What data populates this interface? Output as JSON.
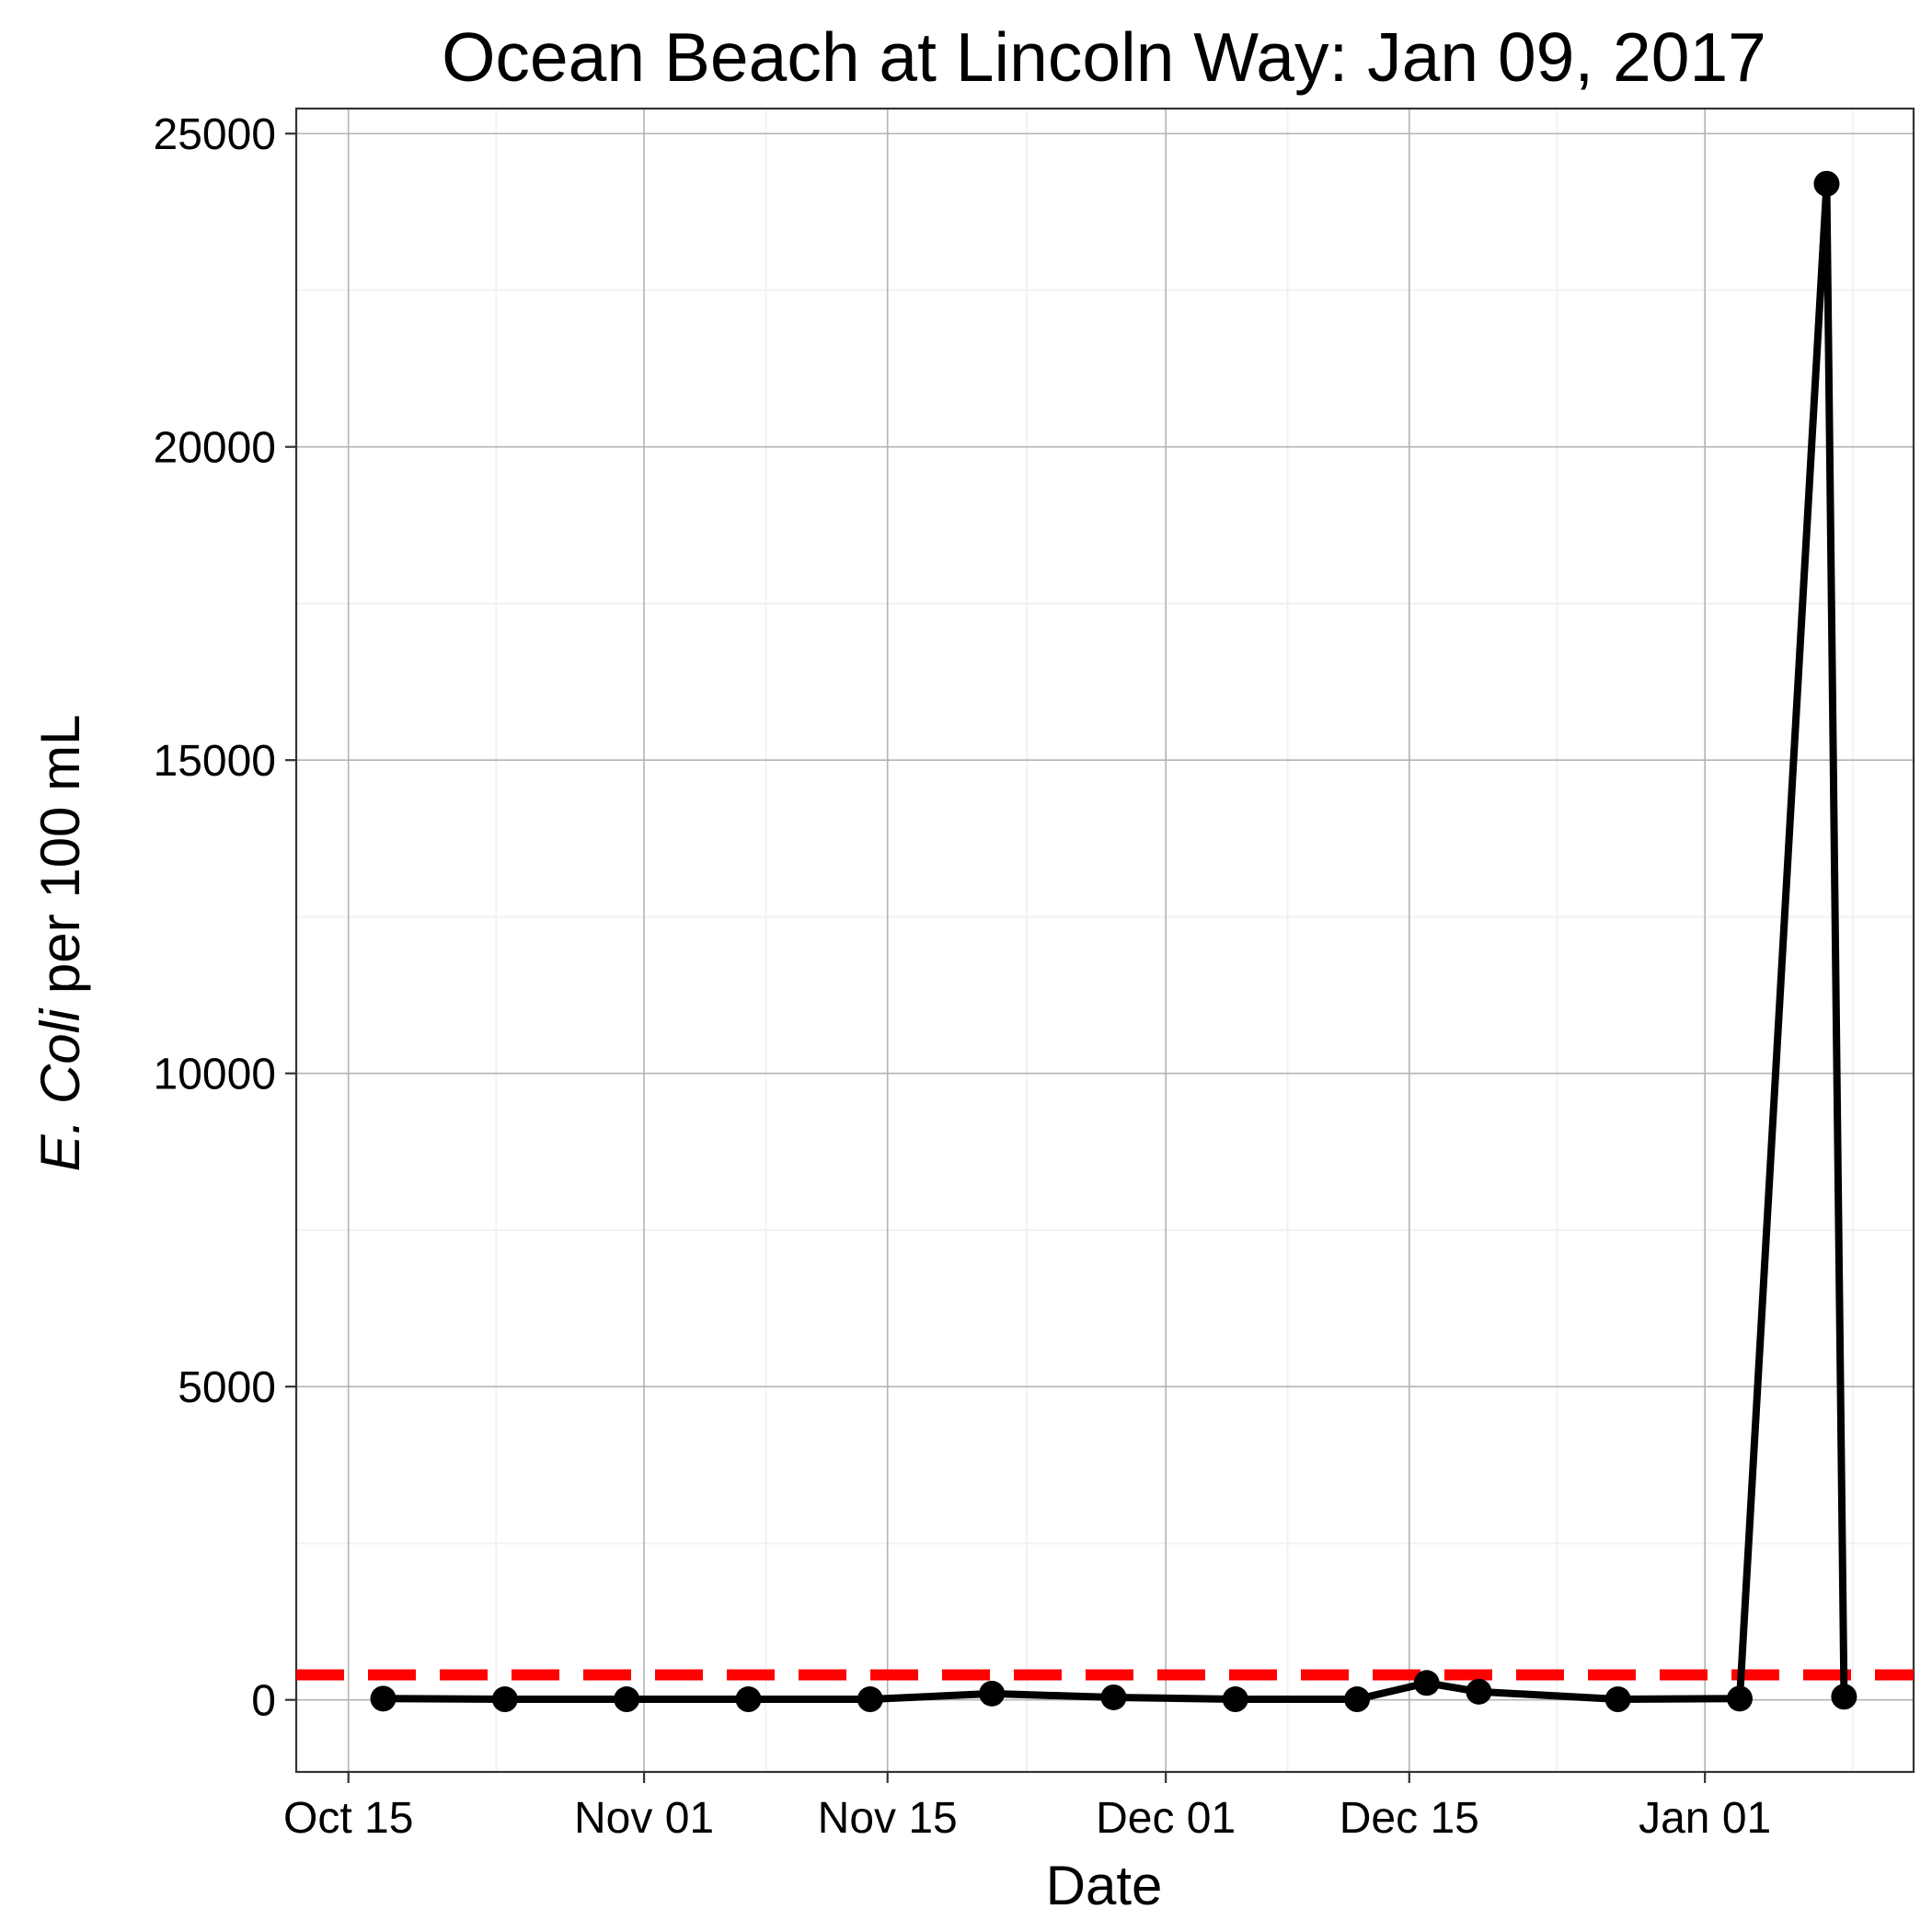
{
  "chart_data": {
    "type": "line",
    "title": "Ocean Beach at Lincoln Way: Jan 09, 2017",
    "xlabel": "Date",
    "ylabel_italic": "E. Coli",
    "ylabel_rest": " per 100 mL",
    "xlim": [
      "2016-10-12",
      "2017-01-13"
    ],
    "ylim": [
      -1150,
      25400
    ],
    "x_ticks": [
      {
        "date": "2016-10-15",
        "label": "Oct 15"
      },
      {
        "date": "2016-11-01",
        "label": "Nov 01"
      },
      {
        "date": "2016-11-15",
        "label": "Nov 15"
      },
      {
        "date": "2016-12-01",
        "label": "Dec 01"
      },
      {
        "date": "2016-12-15",
        "label": "Dec 15"
      },
      {
        "date": "2017-01-01",
        "label": "Jan 01"
      }
    ],
    "y_ticks": [
      0,
      5000,
      10000,
      15000,
      20000,
      25000
    ],
    "grid": true,
    "threshold": {
      "value": 400,
      "color": "#ff0000",
      "style": "dashed"
    },
    "series": [
      {
        "color": "#000000",
        "points": [
          {
            "date": "2016-10-17",
            "value": 20
          },
          {
            "date": "2016-10-24",
            "value": 10
          },
          {
            "date": "2016-10-31",
            "value": 10
          },
          {
            "date": "2016-11-07",
            "value": 10
          },
          {
            "date": "2016-11-14",
            "value": 10
          },
          {
            "date": "2016-11-21",
            "value": 100
          },
          {
            "date": "2016-11-28",
            "value": 40
          },
          {
            "date": "2016-12-05",
            "value": 10
          },
          {
            "date": "2016-12-12",
            "value": 10
          },
          {
            "date": "2016-12-16",
            "value": 270
          },
          {
            "date": "2016-12-19",
            "value": 130
          },
          {
            "date": "2016-12-27",
            "value": 10
          },
          {
            "date": "2017-01-03",
            "value": 20
          },
          {
            "date": "2017-01-08",
            "value": 24200
          },
          {
            "date": "2017-01-09",
            "value": 50
          }
        ]
      }
    ]
  }
}
